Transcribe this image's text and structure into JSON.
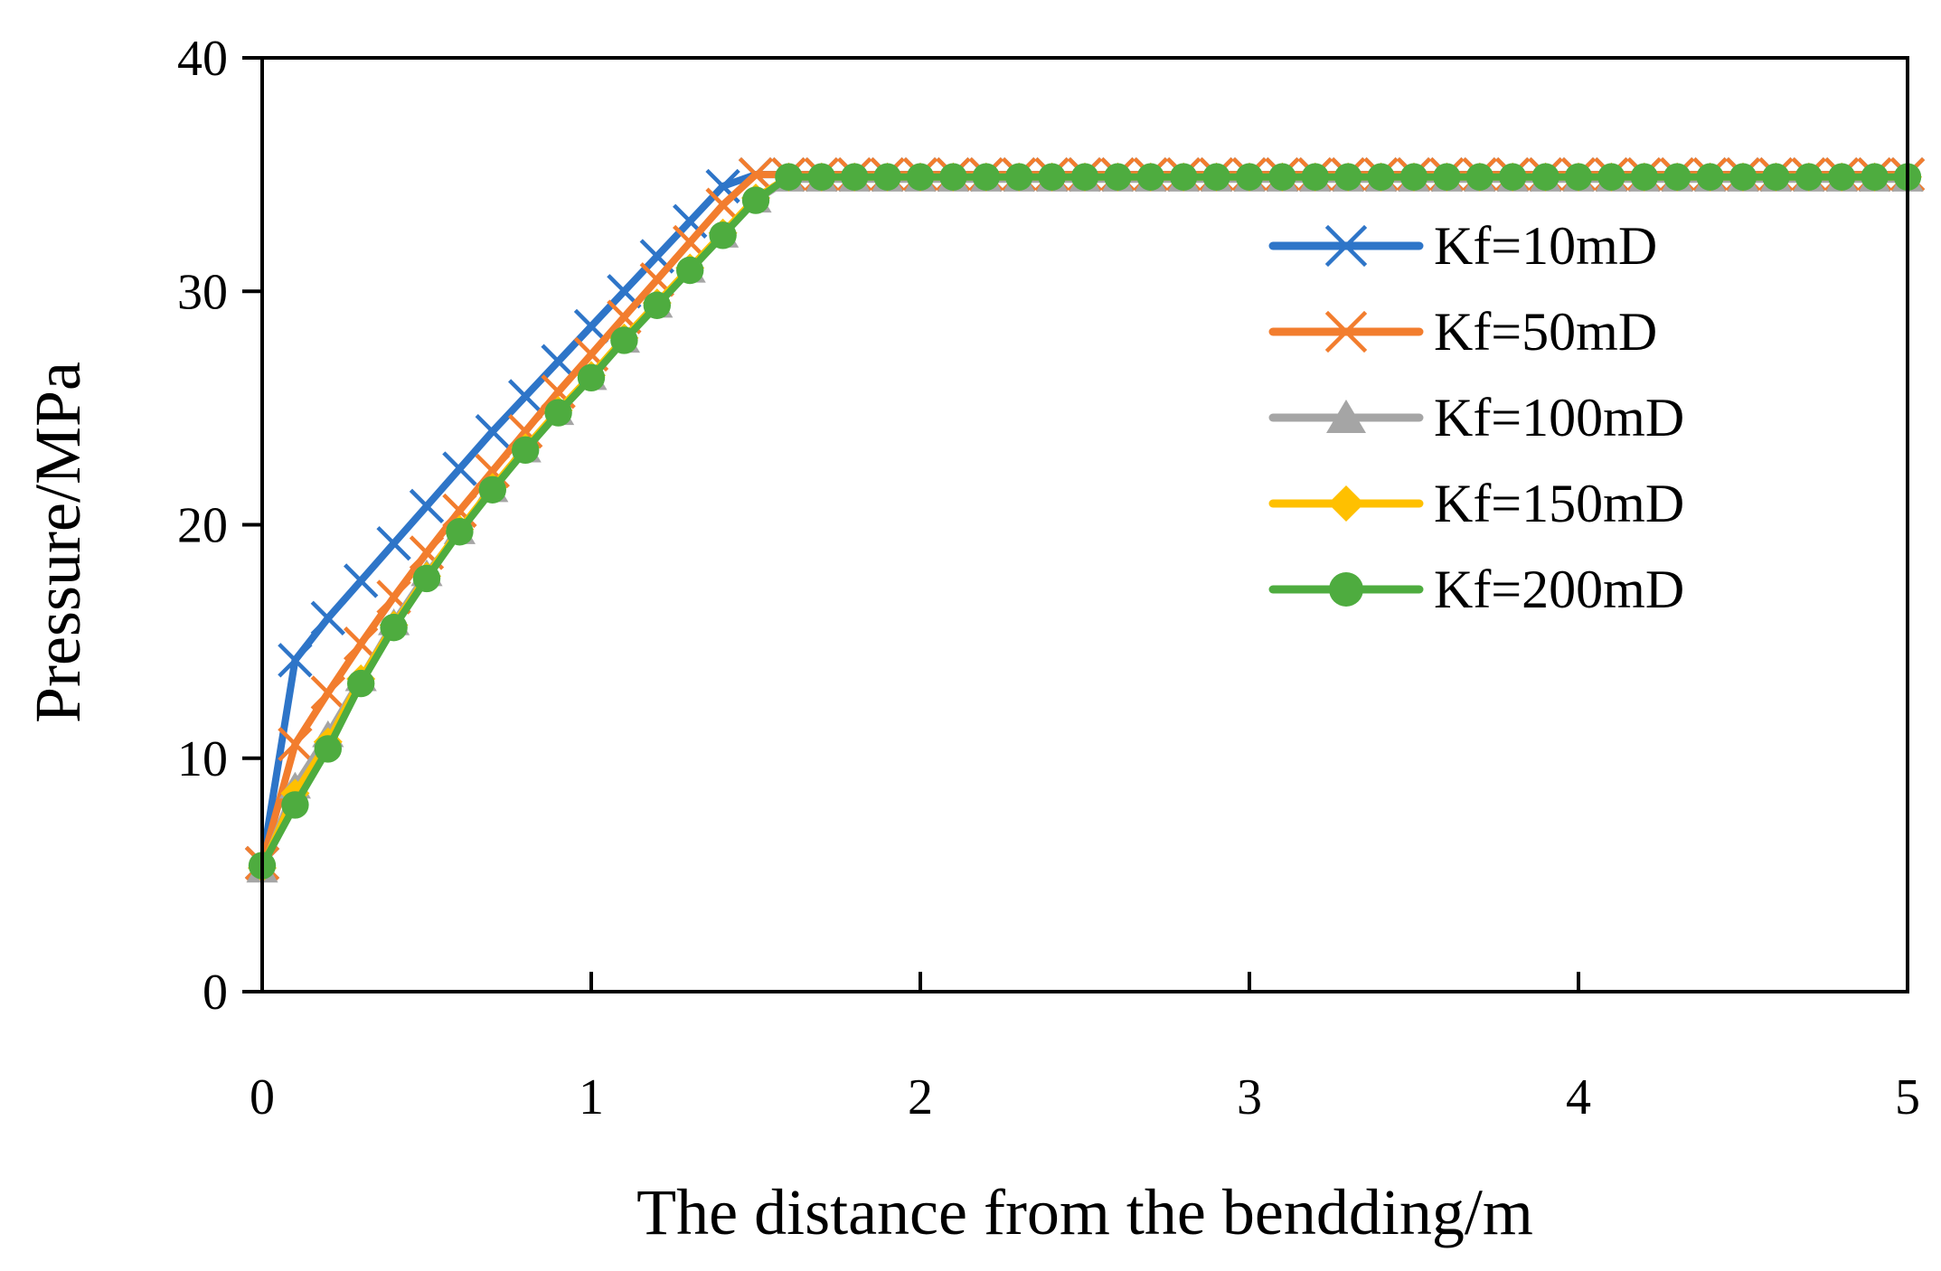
{
  "chart_data": {
    "type": "line",
    "title": "",
    "xlabel": "The distance from the bendding/m",
    "ylabel": "Pressure/MPa",
    "xlim": [
      0,
      5
    ],
    "ylim": [
      0,
      40
    ],
    "xticks": [
      "0",
      "1",
      "2",
      "3",
      "4",
      "5"
    ],
    "yticks": [
      "0",
      "10",
      "20",
      "30",
      "40"
    ],
    "grid": false,
    "legend_position": "right",
    "x": [
      0,
      0.1,
      0.2,
      0.3,
      0.4,
      0.5,
      0.6,
      0.7,
      0.8,
      0.9,
      1.0,
      1.1,
      1.2,
      1.3,
      1.4,
      1.5,
      1.6,
      1.7,
      1.8,
      1.9,
      2.0,
      2.1,
      2.2,
      2.3,
      2.4,
      2.5,
      2.6,
      2.7,
      2.8,
      2.9,
      3.0,
      3.1,
      3.2,
      3.3,
      3.4,
      3.5,
      3.6,
      3.7,
      3.8,
      3.9,
      4.0,
      4.1,
      4.2,
      4.3,
      4.4,
      4.5,
      4.6,
      4.7,
      4.8,
      4.9,
      5.0
    ],
    "series": [
      {
        "name": "Kf=10mD",
        "color": "#2E75C8",
        "marker": "x",
        "values": [
          5.5,
          14.2,
          16.0,
          17.6,
          19.2,
          20.8,
          22.4,
          24.0,
          25.5,
          27.0,
          28.5,
          30.0,
          31.5,
          33.0,
          34.5,
          35.0,
          35.0,
          35.0,
          35.0,
          35.0,
          35.0,
          35.0,
          35.0,
          35.0,
          35.0,
          35.0,
          35.0,
          35.0,
          35.0,
          35.0,
          35.0,
          35.0,
          35.0,
          35.0,
          35.0,
          35.0,
          35.0,
          35.0,
          35.0,
          35.0,
          35.0,
          35.0,
          35.0,
          35.0,
          35.0,
          35.0,
          35.0,
          35.0,
          35.0,
          35.0,
          35.0
        ]
      },
      {
        "name": "Kf=50mD",
        "color": "#F27D2E",
        "marker": "x",
        "values": [
          5.5,
          10.6,
          12.8,
          14.9,
          16.9,
          18.8,
          20.6,
          22.3,
          24.0,
          25.7,
          27.3,
          28.9,
          30.5,
          32.1,
          33.7,
          35.0,
          35.0,
          35.0,
          35.0,
          35.0,
          35.0,
          35.0,
          35.0,
          35.0,
          35.0,
          35.0,
          35.0,
          35.0,
          35.0,
          35.0,
          35.0,
          35.0,
          35.0,
          35.0,
          35.0,
          35.0,
          35.0,
          35.0,
          35.0,
          35.0,
          35.0,
          35.0,
          35.0,
          35.0,
          35.0,
          35.0,
          35.0,
          35.0,
          35.0,
          35.0,
          35.0
        ]
      },
      {
        "name": "Kf=100mD",
        "color": "#A5A5A5",
        "marker": "triangle",
        "values": [
          5.2,
          8.8,
          11.0,
          13.4,
          15.8,
          17.9,
          19.7,
          21.5,
          23.2,
          24.8,
          26.3,
          27.9,
          29.4,
          30.9,
          32.4,
          33.9,
          34.8,
          34.8,
          34.8,
          34.8,
          34.8,
          34.8,
          34.8,
          34.8,
          34.8,
          34.8,
          34.8,
          34.8,
          34.8,
          34.8,
          34.8,
          34.8,
          34.8,
          34.8,
          34.8,
          34.8,
          34.8,
          34.8,
          34.8,
          34.8,
          34.8,
          34.8,
          34.8,
          34.8,
          34.8,
          34.8,
          34.8,
          34.8,
          34.8,
          34.8,
          34.8
        ]
      },
      {
        "name": "Kf=150mD",
        "color": "#FFC000",
        "marker": "diamond",
        "values": [
          5.3,
          8.5,
          10.7,
          13.4,
          15.7,
          17.8,
          19.8,
          21.6,
          23.3,
          24.9,
          26.4,
          28.0,
          29.5,
          31.0,
          32.5,
          34.0,
          34.9,
          34.9,
          34.9,
          34.9,
          34.9,
          34.9,
          34.9,
          34.9,
          34.9,
          34.9,
          34.9,
          34.9,
          34.9,
          34.9,
          34.9,
          34.9,
          34.9,
          34.9,
          34.9,
          34.9,
          34.9,
          34.9,
          34.9,
          34.9,
          34.9,
          34.9,
          34.9,
          34.9,
          34.9,
          34.9,
          34.9,
          34.9,
          34.9,
          34.9,
          34.9
        ]
      },
      {
        "name": "Kf=200mD",
        "color": "#4EAC3F",
        "marker": "circle",
        "values": [
          5.4,
          8.0,
          10.4,
          13.2,
          15.6,
          17.7,
          19.7,
          21.5,
          23.2,
          24.8,
          26.3,
          27.9,
          29.4,
          30.9,
          32.4,
          33.9,
          34.9,
          34.9,
          34.9,
          34.9,
          34.9,
          34.9,
          34.9,
          34.9,
          34.9,
          34.9,
          34.9,
          34.9,
          34.9,
          34.9,
          34.9,
          34.9,
          34.9,
          34.9,
          34.9,
          34.9,
          34.9,
          34.9,
          34.9,
          34.9,
          34.9,
          34.9,
          34.9,
          34.9,
          34.9,
          34.9,
          34.9,
          34.9,
          34.9,
          34.9,
          34.9
        ]
      }
    ]
  }
}
